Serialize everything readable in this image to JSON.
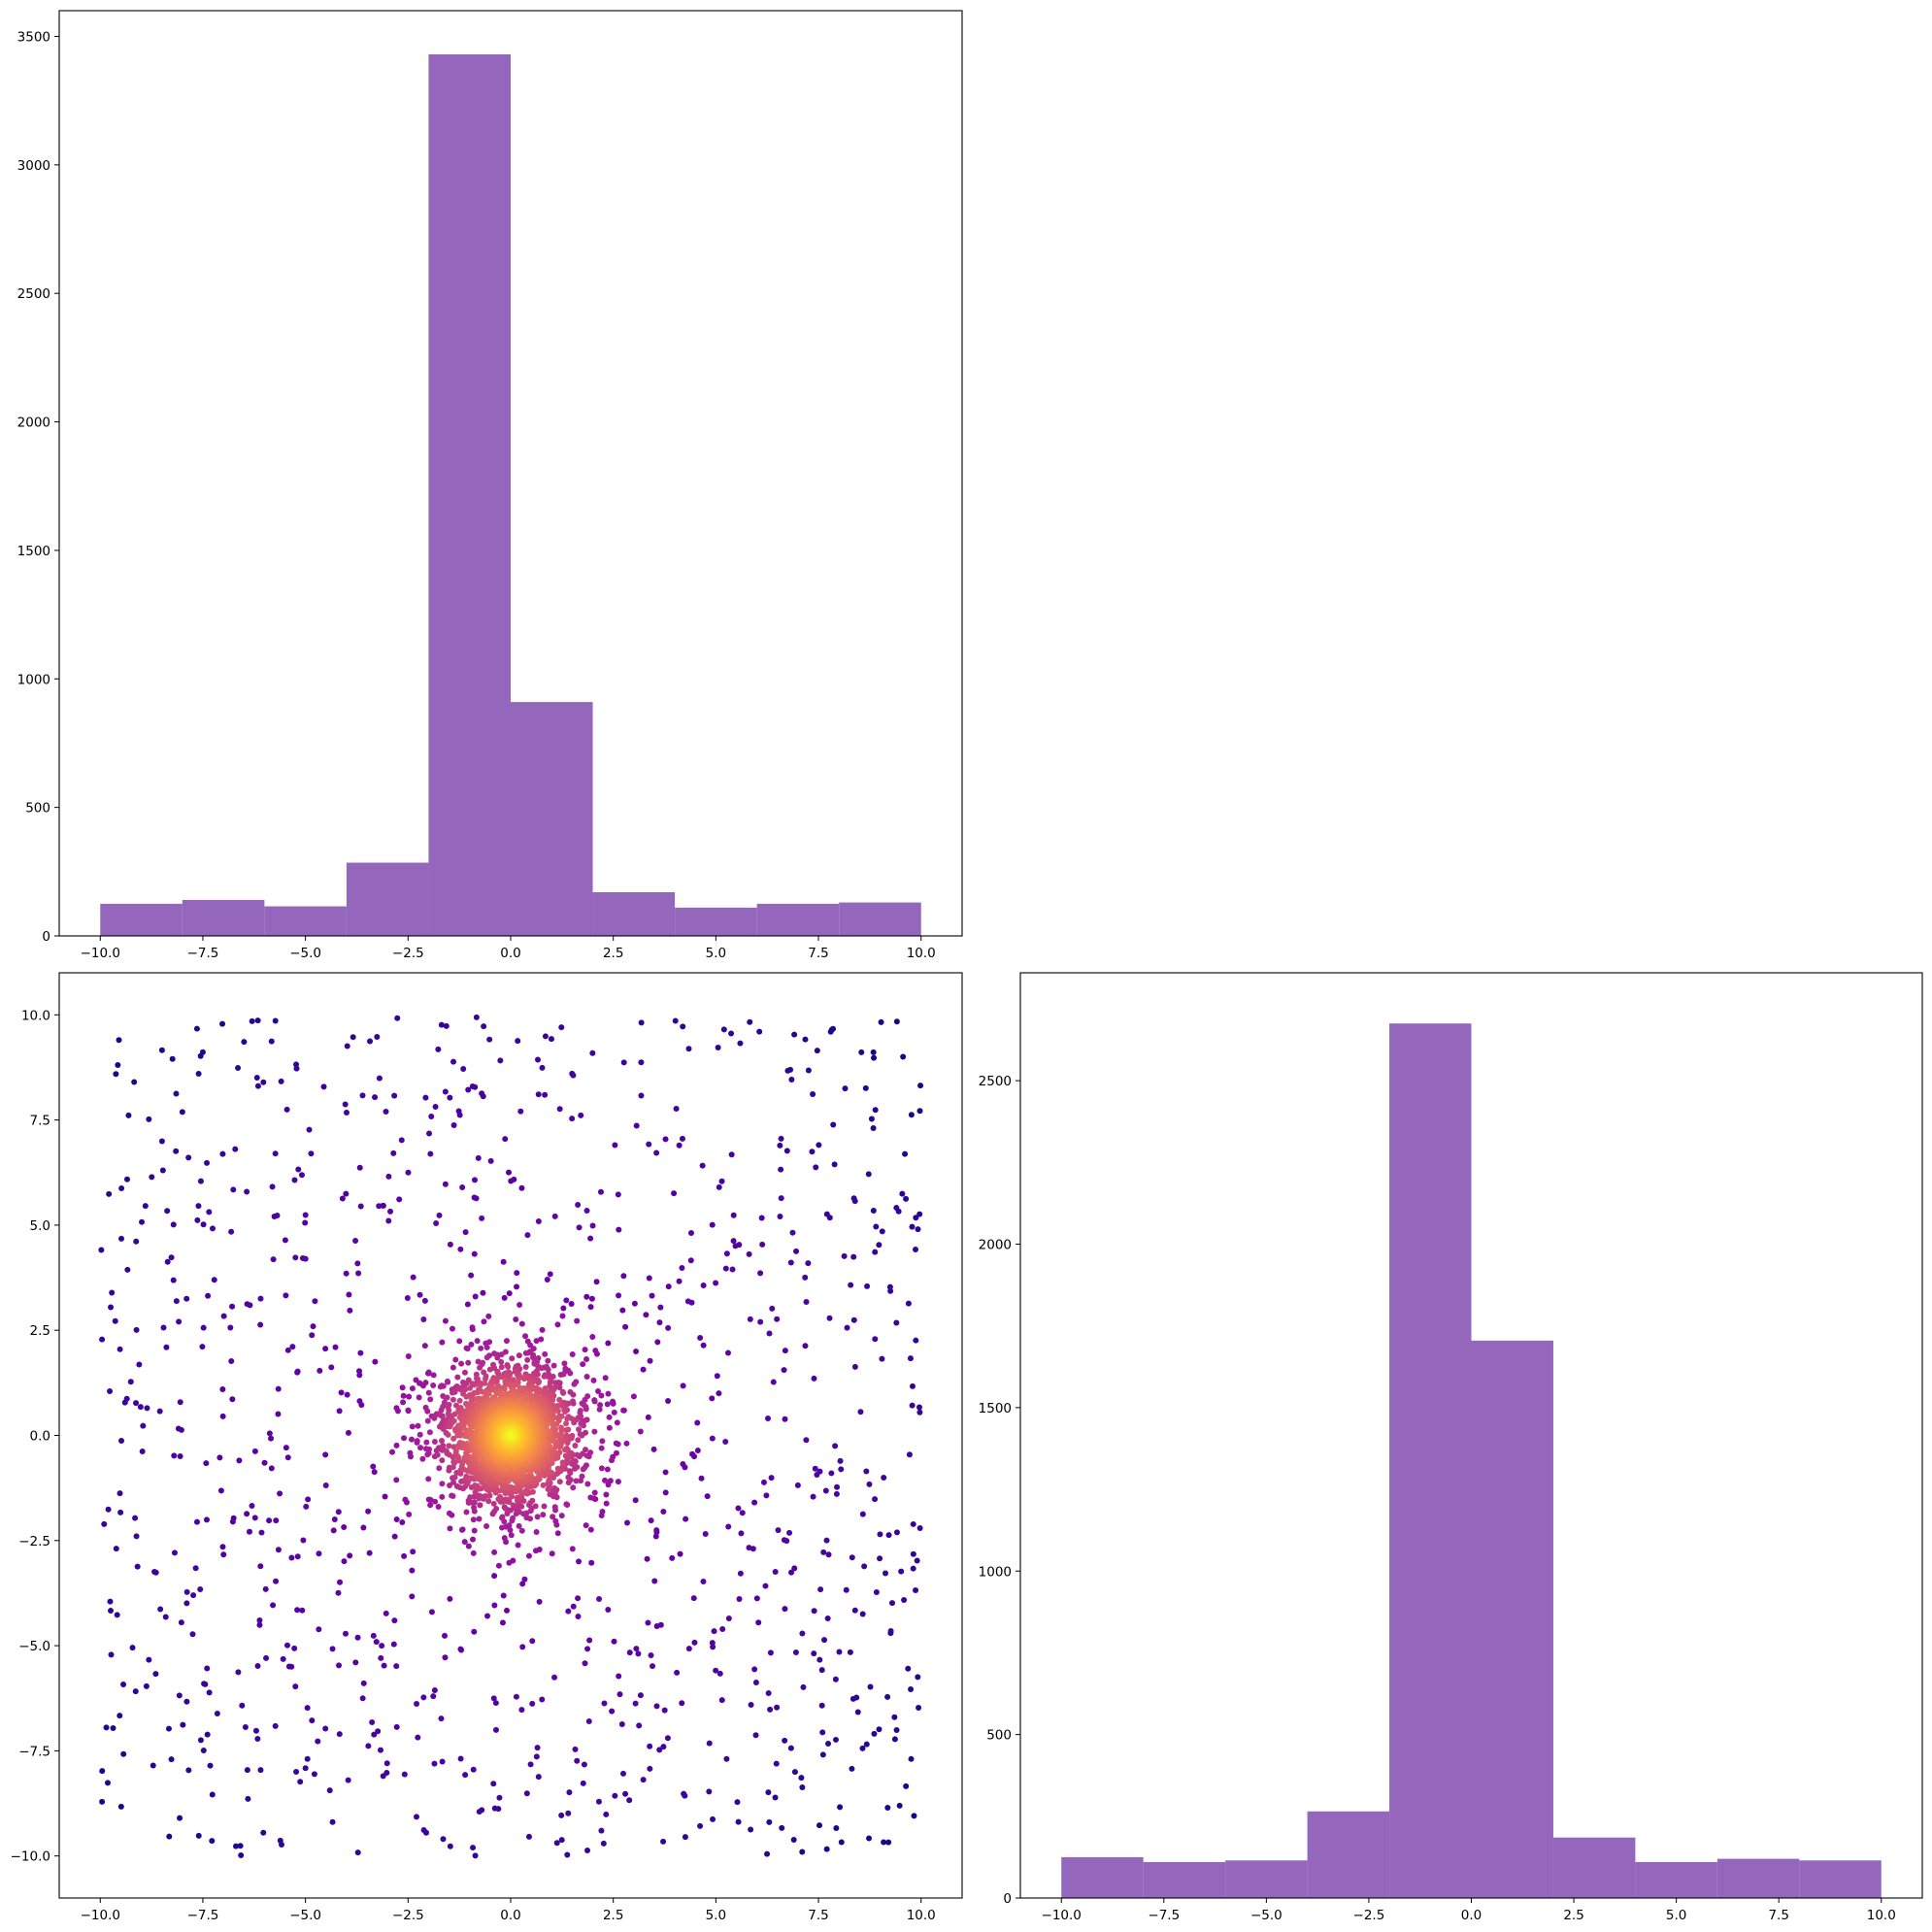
{
  "colors": {
    "bar": "#9467bd",
    "axis": "#000000",
    "background": "#ffffff",
    "colormap": "plasma"
  },
  "chart_data": [
    {
      "id": "top-hist",
      "type": "bar",
      "subtype": "histogram",
      "bin_edges": [
        -10,
        -8,
        -6,
        -4,
        -2,
        0,
        2,
        4,
        6,
        8,
        10
      ],
      "values": [
        125,
        140,
        115,
        285,
        3430,
        910,
        170,
        110,
        125,
        130
      ],
      "xlim": [
        -11,
        11
      ],
      "ylim": [
        0,
        3600
      ],
      "xticks": [
        -10.0,
        -7.5,
        -5.0,
        -2.5,
        0.0,
        2.5,
        5.0,
        7.5,
        10.0
      ],
      "xtick_labels": [
        "−10.0",
        "−7.5",
        "−5.0",
        "−2.5",
        "0.0",
        "2.5",
        "5.0",
        "7.5",
        "10.0"
      ],
      "yticks": [
        0,
        500,
        1000,
        1500,
        2000,
        2500,
        3000,
        3500
      ],
      "ytick_labels": [
        "0",
        "500",
        "1000",
        "1500",
        "2000",
        "2500",
        "3000",
        "3500"
      ]
    },
    {
      "id": "scatter",
      "type": "scatter",
      "description": "2D point cloud: uniform background points over [-10,10]x[-10,10] plus a dense gaussian cluster at the origin, colored by local density (plasma colormap, yellow at center).",
      "uniform_background": {
        "count": 1000,
        "x_range": [
          -10,
          10
        ],
        "y_range": [
          -10,
          10
        ]
      },
      "central_cluster": {
        "count": 4000,
        "center": [
          0,
          0
        ],
        "radius_extent": 3
      },
      "xlim": [
        -11,
        11
      ],
      "ylim": [
        -11,
        11
      ],
      "xticks": [
        -10.0,
        -7.5,
        -5.0,
        -2.5,
        0.0,
        2.5,
        5.0,
        7.5,
        10.0
      ],
      "xtick_labels": [
        "−10.0",
        "−7.5",
        "−5.0",
        "−2.5",
        "0.0",
        "2.5",
        "5.0",
        "7.5",
        "10.0"
      ],
      "yticks": [
        -10.0,
        -7.5,
        -5.0,
        -2.5,
        0.0,
        2.5,
        5.0,
        7.5,
        10.0
      ],
      "ytick_labels": [
        "−10.0",
        "−7.5",
        "−5.0",
        "−2.5",
        "0.0",
        "2.5",
        "5.0",
        "7.5",
        "10.0"
      ]
    },
    {
      "id": "right-hist",
      "type": "bar",
      "subtype": "histogram",
      "bin_edges": [
        -10,
        -8,
        -6,
        -4,
        -2,
        0,
        2,
        4,
        6,
        8,
        10
      ],
      "values": [
        125,
        110,
        115,
        265,
        2675,
        1705,
        185,
        110,
        120,
        115
      ],
      "xlim": [
        -11,
        11
      ],
      "ylim": [
        0,
        2830
      ],
      "xticks": [
        -10.0,
        -7.5,
        -5.0,
        -2.5,
        0.0,
        2.5,
        5.0,
        7.5,
        10.0
      ],
      "xtick_labels": [
        "−10.0",
        "−7.5",
        "−5.0",
        "−2.5",
        "0.0",
        "2.5",
        "5.0",
        "7.5",
        "10.0"
      ],
      "yticks": [
        0,
        500,
        1000,
        1500,
        2000,
        2500
      ],
      "ytick_labels": [
        "0",
        "500",
        "1000",
        "1500",
        "2000",
        "2500"
      ]
    }
  ]
}
